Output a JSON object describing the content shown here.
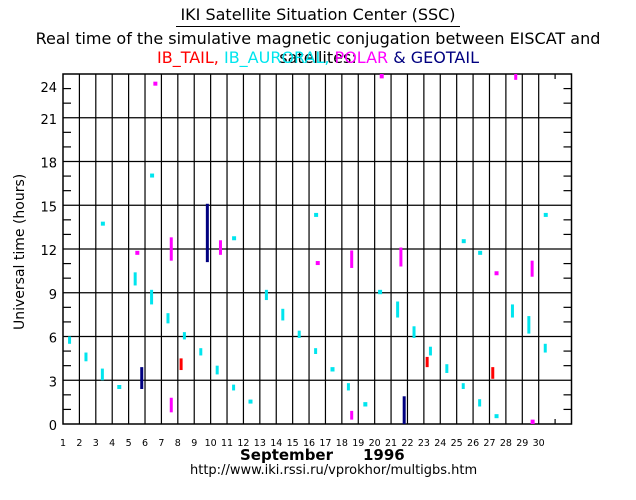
{
  "header": {
    "title": "IKI Satellite Situation Center (SSC)",
    "subtitle": "Real time of the simulative magnetic conjugation between EISCAT and satellites:"
  },
  "legend": [
    {
      "label": "IB_TAIL,",
      "color": "#ff0000"
    },
    {
      "label": " IB_AURORAL,",
      "color": "#00e5ee"
    },
    {
      "label": " POLAR",
      "color": "#ff00ff"
    },
    {
      "label": " & ",
      "color": "#000080"
    },
    {
      "label": "GEOTAIL",
      "color": "#000080"
    }
  ],
  "footer": {
    "month": "September",
    "year": "1996",
    "url": "http://www.iki.rssi.ru/vprokhor/multigbs.htm"
  },
  "chart_data": {
    "type": "scatter",
    "title": "Real time of the simulative magnetic conjugation between EISCAT and satellites",
    "xlabel": "September 1996",
    "ylabel": "Universal time (hours)",
    "xlim": [
      1,
      32
    ],
    "ylim": [
      0,
      24
    ],
    "grid": true,
    "x_tick_labels": [
      "1",
      "2",
      "3",
      "4",
      "5",
      "6",
      "7",
      "8",
      "9",
      "10",
      "11",
      "12",
      "13",
      "14",
      "15",
      "16",
      "17",
      "18",
      "19",
      "20",
      "21",
      "22",
      "23",
      "24",
      "25",
      "26",
      "27",
      "28",
      "29",
      "30"
    ],
    "y_ticks": [
      0,
      3,
      6,
      9,
      12,
      15,
      18,
      21,
      24
    ],
    "legend_position": "top",
    "series": [
      {
        "name": "IB_TAIL",
        "color": "#ff0000",
        "intervals": [
          {
            "day": 8.2,
            "start": 3.7,
            "end": 4.5
          },
          {
            "day": 23.2,
            "start": 3.9,
            "end": 4.6
          },
          {
            "day": 27.2,
            "start": 3.1,
            "end": 3.9
          }
        ]
      },
      {
        "name": "IB_AURORAL",
        "color": "#00e5ee",
        "intervals": [
          {
            "day": 1.4,
            "start": 5.5,
            "end": 6.0
          },
          {
            "day": 2.4,
            "start": 4.3,
            "end": 4.9
          },
          {
            "day": 3.4,
            "start": 3.0,
            "end": 3.8
          },
          {
            "day": 3.4,
            "start": 13.6,
            "end": 13.8
          },
          {
            "day": 4.4,
            "start": 2.4,
            "end": 2.6
          },
          {
            "day": 5.4,
            "start": 9.5,
            "end": 10.4
          },
          {
            "day": 6.4,
            "start": 16.9,
            "end": 17.1
          },
          {
            "day": 6.4,
            "start": 8.2,
            "end": 9.2
          },
          {
            "day": 7.4,
            "start": 6.9,
            "end": 7.6
          },
          {
            "day": 8.4,
            "start": 5.8,
            "end": 6.3
          },
          {
            "day": 9.4,
            "start": 4.7,
            "end": 5.2
          },
          {
            "day": 10.4,
            "start": 3.4,
            "end": 4.0
          },
          {
            "day": 11.4,
            "start": 12.6,
            "end": 12.8
          },
          {
            "day": 11.4,
            "start": 2.3,
            "end": 2.7
          },
          {
            "day": 12.4,
            "start": 1.4,
            "end": 1.6
          },
          {
            "day": 13.4,
            "start": 8.5,
            "end": 9.2
          },
          {
            "day": 14.4,
            "start": 7.1,
            "end": 7.9
          },
          {
            "day": 15.4,
            "start": 5.9,
            "end": 6.4
          },
          {
            "day": 16.4,
            "start": 14.2,
            "end": 14.4
          },
          {
            "day": 16.4,
            "start": 4.8,
            "end": 5.2
          },
          {
            "day": 17.4,
            "start": 3.6,
            "end": 3.9
          },
          {
            "day": 18.4,
            "start": 2.3,
            "end": 2.8
          },
          {
            "day": 19.4,
            "start": 1.2,
            "end": 1.5
          },
          {
            "day": 20.3,
            "start": 8.9,
            "end": 9.2
          },
          {
            "day": 21.4,
            "start": 7.3,
            "end": 8.4
          },
          {
            "day": 22.4,
            "start": 5.9,
            "end": 6.7
          },
          {
            "day": 23.4,
            "start": 4.7,
            "end": 5.3
          },
          {
            "day": 24.4,
            "start": 3.5,
            "end": 4.1
          },
          {
            "day": 25.4,
            "start": 12.4,
            "end": 12.6
          },
          {
            "day": 25.4,
            "start": 2.4,
            "end": 2.8
          },
          {
            "day": 26.4,
            "start": 11.6,
            "end": 11.8
          },
          {
            "day": 26.4,
            "start": 1.2,
            "end": 1.7
          },
          {
            "day": 27.4,
            "start": 0.4,
            "end": 0.6
          },
          {
            "day": 28.4,
            "start": 7.3,
            "end": 8.2
          },
          {
            "day": 29.4,
            "start": 6.2,
            "end": 7.4
          },
          {
            "day": 30.4,
            "start": 14.2,
            "end": 14.4
          },
          {
            "day": 30.4,
            "start": 4.9,
            "end": 5.5
          }
        ]
      },
      {
        "name": "POLAR",
        "color": "#ff00ff",
        "intervals": [
          {
            "day": 5.5,
            "start": 11.6,
            "end": 11.8
          },
          {
            "day": 6.6,
            "start": 23.2,
            "end": 23.4
          },
          {
            "day": 7.6,
            "start": 11.2,
            "end": 12.8
          },
          {
            "day": 7.6,
            "start": 0.8,
            "end": 1.8
          },
          {
            "day": 10.6,
            "start": 11.6,
            "end": 12.6
          },
          {
            "day": 16.5,
            "start": 10.9,
            "end": 11.1
          },
          {
            "day": 18.6,
            "start": 10.7,
            "end": 11.9
          },
          {
            "day": 18.6,
            "start": 0.3,
            "end": 0.9
          },
          {
            "day": 20.4,
            "start": 23.7,
            "end": 24.0
          },
          {
            "day": 21.6,
            "start": 10.8,
            "end": 12.1
          },
          {
            "day": 27.4,
            "start": 10.2,
            "end": 10.4
          },
          {
            "day": 28.6,
            "start": 23.6,
            "end": 24.0
          },
          {
            "day": 29.6,
            "start": 10.1,
            "end": 11.2
          },
          {
            "day": 29.6,
            "start": 0.0,
            "end": 0.3
          }
        ]
      },
      {
        "name": "GEOTAIL",
        "color": "#000080",
        "intervals": [
          {
            "day": 5.8,
            "start": 2.4,
            "end": 3.9
          },
          {
            "day": 9.8,
            "start": 11.1,
            "end": 15.1
          },
          {
            "day": 21.8,
            "start": 0.0,
            "end": 1.9
          }
        ]
      }
    ]
  }
}
